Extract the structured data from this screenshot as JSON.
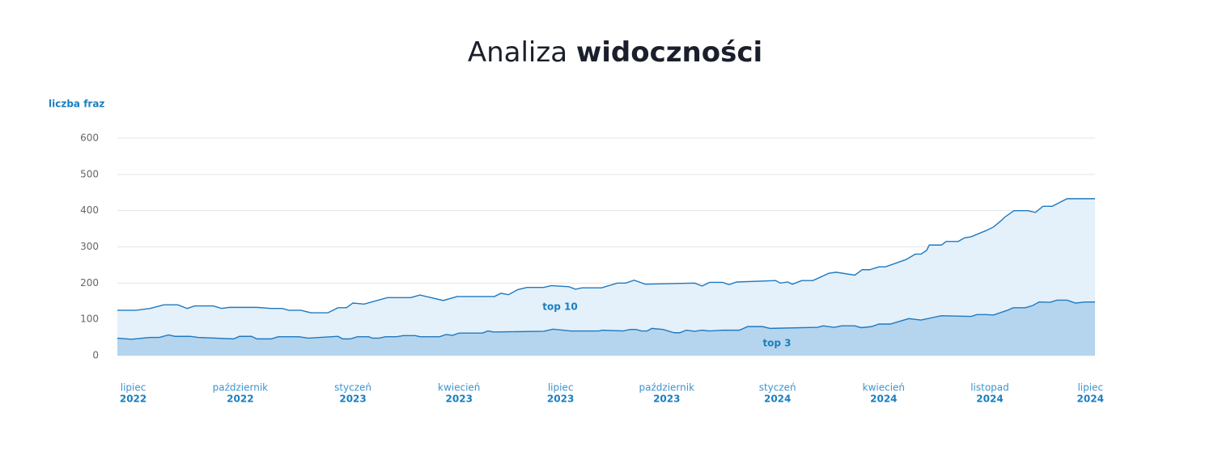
{
  "chart_data": {
    "type": "area",
    "title": "Analiza",
    "title_bold": "widoczności",
    "y_label": "liczba fraz",
    "xlim": [
      0,
      105
    ],
    "ylim": [
      0,
      600
    ],
    "yticks": [
      0,
      100,
      200,
      300,
      400,
      500,
      600
    ],
    "grid": true,
    "x_labels": [
      {
        "value": 1.7,
        "month": "lipiec",
        "year": "2022"
      },
      {
        "value": 13.2,
        "month": "październik",
        "year": "2022"
      },
      {
        "value": 25.3,
        "month": "styczeń",
        "year": "2023"
      },
      {
        "value": 36.7,
        "month": "kwiecień",
        "year": "2023"
      },
      {
        "value": 47.6,
        "month": "lipiec",
        "year": "2023"
      },
      {
        "value": 59,
        "month": "październik",
        "year": "2023"
      },
      {
        "value": 70.9,
        "month": "styczeń",
        "year": "2024"
      },
      {
        "value": 82.3,
        "month": "kwiecień",
        "year": "2024"
      },
      {
        "value": 93.7,
        "month": "listopad",
        "year": "2024"
      },
      {
        "value": 104.5,
        "month": "lipiec",
        "year": "2024"
      }
    ],
    "series": [
      {
        "name": "top 10",
        "color": "#1f7ac0",
        "fill": "#e4f0fa",
        "x": [
          0,
          2,
          3.5,
          5,
          6.5,
          7.5,
          8.3,
          10.3,
          11.2,
          12,
          15,
          16.5,
          17.7,
          18.4,
          19.7,
          20.8,
          22.6,
          23.7,
          24.6,
          25.3,
          26.5,
          29,
          31.5,
          32.5,
          35,
          36.5,
          40.5,
          41.2,
          42,
          43,
          44,
          45.8,
          46.6,
          48.5,
          49.2,
          49.9,
          52,
          53.7,
          54.6,
          55.5,
          56.7,
          62,
          62.8,
          63.6,
          65,
          65.7,
          66.5,
          70.7,
          71.2,
          72,
          72.5,
          73.5,
          74.7,
          76.4,
          77.2,
          79.2,
          80,
          80.8,
          81.8,
          82.5,
          84.7,
          85.7,
          86.3,
          86.9,
          87.2,
          88.5,
          89,
          90.3,
          91,
          91.7,
          93.3,
          94.1,
          94.9,
          95.3,
          96.3,
          97.8,
          98.6,
          99.4,
          100.4,
          102,
          105
        ],
        "values": [
          125,
          125,
          130,
          140,
          140,
          130,
          137,
          137,
          130,
          133,
          133,
          130,
          130,
          125,
          125,
          118,
          118,
          132,
          132,
          145,
          142,
          160,
          160,
          167,
          152,
          163,
          163,
          172,
          168,
          182,
          188,
          188,
          193,
          190,
          183,
          187,
          187,
          200,
          200,
          208,
          197,
          200,
          192,
          202,
          202,
          196,
          203,
          207,
          200,
          203,
          197,
          207,
          207,
          227,
          230,
          222,
          237,
          237,
          245,
          245,
          265,
          280,
          280,
          290,
          305,
          305,
          315,
          315,
          325,
          328,
          345,
          355,
          372,
          382,
          400,
          400,
          395,
          412,
          412,
          433,
          433
        ]
      },
      {
        "name": "top 3",
        "color": "#1f7ac0",
        "fill": "#b5d5ee",
        "x": [
          0,
          1.5,
          3.5,
          4.5,
          5.5,
          6.2,
          7.8,
          8.7,
          12.5,
          13.1,
          14.4,
          15,
          16.5,
          17.3,
          19.5,
          20.5,
          23.7,
          24.2,
          25,
          25.8,
          27,
          27.4,
          28.1,
          28.8,
          30,
          30.7,
          32,
          32.5,
          34.6,
          35.3,
          36,
          36.7,
          39.2,
          39.8,
          40.4,
          45.8,
          46.8,
          48.7,
          51.7,
          52.1,
          54.3,
          55.1,
          55.7,
          56.3,
          56.9,
          57.4,
          58.6,
          59.8,
          60.4,
          61.1,
          62,
          62.8,
          63.6,
          65,
          66.8,
          67.7,
          69.3,
          70.1,
          75.2,
          75.8,
          77,
          77.8,
          79.2,
          79.9,
          81,
          81.8,
          83,
          85,
          86.3,
          88.5,
          91.7,
          92.3,
          93.3,
          94.1,
          95.6,
          96.2,
          97.5,
          98.3,
          99,
          100.2,
          100.9,
          102,
          102.9,
          104,
          105
        ],
        "values": [
          48,
          45,
          50,
          50,
          57,
          53,
          53,
          50,
          46,
          53,
          53,
          46,
          46,
          52,
          52,
          48,
          53,
          46,
          46,
          52,
          52,
          48,
          48,
          52,
          52,
          55,
          55,
          52,
          52,
          58,
          56,
          62,
          62,
          68,
          65,
          67,
          73,
          68,
          68,
          70,
          68,
          72,
          72,
          68,
          68,
          75,
          72,
          63,
          63,
          70,
          67,
          70,
          68,
          70,
          70,
          80,
          80,
          75,
          78,
          82,
          78,
          82,
          82,
          77,
          80,
          87,
          87,
          102,
          98,
          110,
          108,
          113,
          113,
          112,
          125,
          132,
          132,
          138,
          148,
          147,
          153,
          153,
          145,
          148,
          148
        ]
      }
    ]
  }
}
